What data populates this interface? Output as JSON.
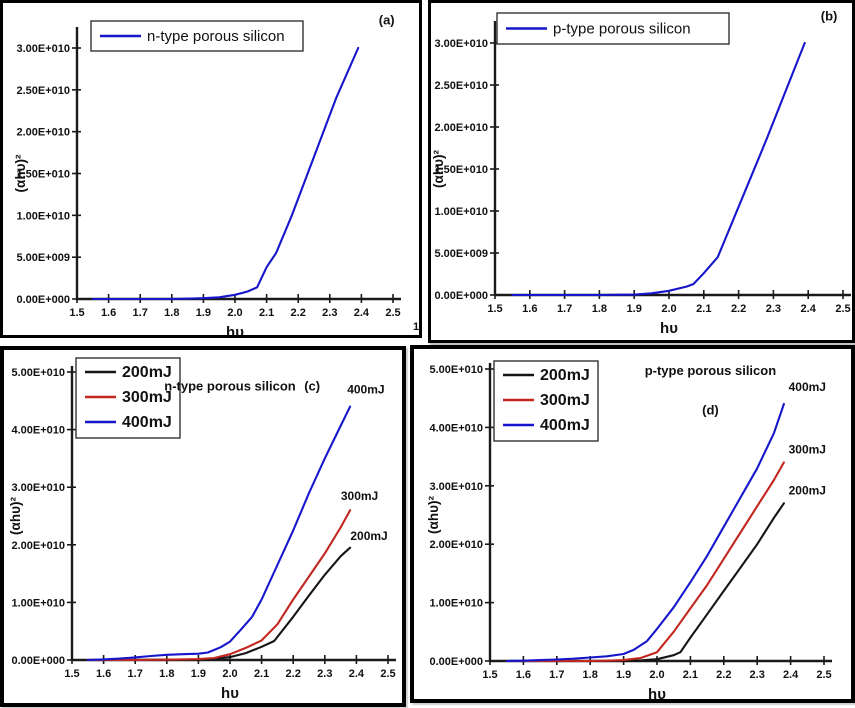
{
  "figure": {
    "stray_mark": "1"
  },
  "colors": {
    "blue": "#1616cc",
    "red": "#c2271f",
    "black": "#151515",
    "axis": "#1a1a1a"
  },
  "chart_data": [
    {
      "type": "line",
      "panel_label": "(a)",
      "xlabel": "hυ",
      "ylabel": "(αhυ)²",
      "xlim": [
        1.5,
        2.5
      ],
      "ylim": [
        0,
        30000000000.0
      ],
      "x_tick_values": [
        1.5,
        1.6,
        1.7,
        1.8,
        1.9,
        2.0,
        2.1,
        2.2,
        2.3,
        2.4,
        2.5
      ],
      "x_tick_labels": [
        "1.5",
        "1.6",
        "1.7",
        "1.8",
        "1.9",
        "2.0",
        "2.1",
        "2.2",
        "2.3",
        "2.4",
        "2.5"
      ],
      "y_tick_values": [
        0,
        5000000000.0,
        10000000000.0,
        15000000000.0,
        20000000000.0,
        25000000000.0,
        30000000000.0
      ],
      "y_tick_labels": [
        "0.00E+000",
        "5.00E+009",
        "1.00E+010",
        "1.50E+010",
        "2.00E+010",
        "2.50E+010",
        "3.00E+010"
      ],
      "legend": [
        {
          "label": "n-type porous silicon",
          "color": "#1616cc"
        }
      ],
      "series": [
        {
          "name": "n-type porous silicon",
          "color": "#1616cc",
          "x": [
            1.55,
            1.6,
            1.7,
            1.8,
            1.9,
            1.95,
            2.0,
            2.04,
            2.07,
            2.1,
            2.13,
            2.18,
            2.25,
            2.32,
            2.39
          ],
          "y": [
            0,
            0,
            0,
            0,
            100000000.0,
            200000000.0,
            500000000.0,
            900000000.0,
            1400000000.0,
            3800000000.0,
            5500000000.0,
            10000000000.0,
            17000000000.0,
            24000000000.0,
            30000000000.0
          ]
        }
      ],
      "annotations": [
        {
          "text": "(a)",
          "x": 2.48,
          "y": 32800000000.0,
          "kind": "letter"
        }
      ]
    },
    {
      "type": "line",
      "panel_label": "(b)",
      "xlabel": "hυ",
      "ylabel": "(αhυ)²",
      "xlim": [
        1.5,
        2.5
      ],
      "ylim": [
        0,
        30000000000.0
      ],
      "x_tick_values": [
        1.5,
        1.6,
        1.7,
        1.8,
        1.9,
        2.0,
        2.1,
        2.2,
        2.3,
        2.4,
        2.5
      ],
      "x_tick_labels": [
        "1.5",
        "1.6",
        "1.7",
        "1.8",
        "1.9",
        "2.0",
        "2.1",
        "2.2",
        "2.3",
        "2.4",
        "2.5"
      ],
      "y_tick_values": [
        0,
        5000000000.0,
        10000000000.0,
        15000000000.0,
        20000000000.0,
        25000000000.0,
        30000000000.0
      ],
      "y_tick_labels": [
        "0.00E+000",
        "5.00E+009",
        "1.00E+010",
        "1.50E+010",
        "2.00E+010",
        "2.50E+010",
        "3.00E+010"
      ],
      "legend": [
        {
          "label": "p-type porous silicon",
          "color": "#1616cc"
        }
      ],
      "series": [
        {
          "name": "p-type porous silicon",
          "color": "#1616cc",
          "x": [
            1.55,
            1.6,
            1.7,
            1.8,
            1.9,
            1.95,
            2.0,
            2.05,
            2.07,
            2.1,
            2.14,
            2.2,
            2.28,
            2.39
          ],
          "y": [
            0,
            0,
            0,
            0,
            50000000.0,
            200000000.0,
            500000000.0,
            1000000000.0,
            1300000000.0,
            2600000000.0,
            4500000000.0,
            10500000000.0,
            18500000000.0,
            30000000000.0
          ]
        }
      ],
      "annotations": [
        {
          "text": "(b)",
          "x": 2.46,
          "y": 32700000000.0,
          "kind": "letter"
        }
      ]
    },
    {
      "type": "line",
      "panel_label": "(c)",
      "xlabel": "hυ",
      "ylabel": "(αhυ)²",
      "xlim": [
        1.5,
        2.5
      ],
      "ylim": [
        0,
        50000000000.0
      ],
      "x_tick_values": [
        1.5,
        1.6,
        1.7,
        1.8,
        1.9,
        2.0,
        2.1,
        2.2,
        2.3,
        2.4,
        2.5
      ],
      "x_tick_labels": [
        "1.5",
        "1.6",
        "1.7",
        "1.8",
        "1.9",
        "2.0",
        "2.1",
        "2.2",
        "2.3",
        "2.4",
        "2.5"
      ],
      "y_tick_values": [
        0,
        10000000000.0,
        20000000000.0,
        30000000000.0,
        40000000000.0,
        50000000000.0
      ],
      "y_tick_labels": [
        "0.00E+000",
        "1.00E+010",
        "2.00E+010",
        "3.00E+010",
        "4.00E+010",
        "5.00E+010"
      ],
      "legend": [
        {
          "label": "200mJ",
          "color": "#151515"
        },
        {
          "label": "300mJ",
          "color": "#c2271f"
        },
        {
          "label": "400mJ",
          "color": "#1616cc"
        }
      ],
      "series": [
        {
          "name": "200mJ",
          "color": "#151515",
          "x": [
            1.55,
            1.7,
            1.8,
            1.9,
            1.95,
            2.0,
            2.05,
            2.1,
            2.14,
            2.2,
            2.25,
            2.3,
            2.35,
            2.38
          ],
          "y": [
            0,
            0,
            50000000.0,
            100000000.0,
            200000000.0,
            500000000.0,
            1200000000.0,
            2300000000.0,
            3300000000.0,
            7500000000.0,
            11200000000.0,
            14800000000.0,
            18000000000.0,
            19500000000.0
          ]
        },
        {
          "name": "300mJ",
          "color": "#c2271f",
          "x": [
            1.55,
            1.7,
            1.8,
            1.9,
            1.95,
            2.0,
            2.05,
            2.1,
            2.15,
            2.2,
            2.25,
            2.3,
            2.35,
            2.38
          ],
          "y": [
            0,
            0,
            50000000.0,
            150000000.0,
            350000000.0,
            1000000000.0,
            2100000000.0,
            3400000000.0,
            6200000000.0,
            10500000000.0,
            14500000000.0,
            18500000000.0,
            23000000000.0,
            26000000000.0
          ]
        },
        {
          "name": "400mJ",
          "color": "#1616cc",
          "x": [
            1.55,
            1.6,
            1.65,
            1.7,
            1.75,
            1.8,
            1.85,
            1.9,
            1.93,
            1.97,
            2.0,
            2.04,
            2.07,
            2.1,
            2.15,
            2.2,
            2.25,
            2.3,
            2.34,
            2.38
          ],
          "y": [
            0,
            100000000.0,
            250000000.0,
            450000000.0,
            700000000.0,
            900000000.0,
            1000000000.0,
            1100000000.0,
            1300000000.0,
            2200000000.0,
            3200000000.0,
            5600000000.0,
            7500000000.0,
            10500000000.0,
            16500000000.0,
            22500000000.0,
            29000000000.0,
            35000000000.0,
            39500000000.0,
            44000000000.0
          ]
        }
      ],
      "annotations": [
        {
          "text": "n-type porous silicon",
          "x": 2.0,
          "y": 46800000000.0,
          "kind": "title"
        },
        {
          "text": "(c)",
          "x": 2.26,
          "y": 46800000000.0,
          "kind": "letter"
        },
        {
          "text": "400mJ",
          "x": 2.43,
          "y": 46300000000.0,
          "kind": "note"
        },
        {
          "text": "300mJ",
          "x": 2.41,
          "y": 27800000000.0,
          "kind": "note"
        },
        {
          "text": "200mJ",
          "x": 2.44,
          "y": 20800000000.0,
          "kind": "note"
        }
      ]
    },
    {
      "type": "line",
      "panel_label": "(d)",
      "xlabel": "hυ",
      "ylabel": "(αhυ)²",
      "xlim": [
        1.5,
        2.5
      ],
      "ylim": [
        0,
        50000000000.0
      ],
      "x_tick_values": [
        1.5,
        1.6,
        1.7,
        1.8,
        1.9,
        2.0,
        2.1,
        2.2,
        2.3,
        2.4,
        2.5
      ],
      "x_tick_labels": [
        "1.5",
        "1.6",
        "1.7",
        "1.8",
        "1.9",
        "2.0",
        "2.1",
        "2.2",
        "2.3",
        "2.4",
        "2.5"
      ],
      "y_tick_values": [
        0,
        10000000000.0,
        20000000000.0,
        30000000000.0,
        40000000000.0,
        50000000000.0
      ],
      "y_tick_labels": [
        "0.00E+000",
        "1.00E+010",
        "2.00E+010",
        "3.00E+010",
        "4.00E+010",
        "5.00E+010"
      ],
      "legend": [
        {
          "label": "200mJ",
          "color": "#151515"
        },
        {
          "label": "300mJ",
          "color": "#c2271f"
        },
        {
          "label": "400mJ",
          "color": "#1616cc"
        }
      ],
      "series": [
        {
          "name": "200mJ",
          "color": "#151515",
          "x": [
            1.55,
            1.9,
            1.95,
            2.0,
            2.05,
            2.07,
            2.1,
            2.15,
            2.2,
            2.25,
            2.3,
            2.35,
            2.38
          ],
          "y": [
            0,
            0,
            100000000.0,
            300000000.0,
            1000000000.0,
            1500000000.0,
            4000000000.0,
            8000000000.0,
            12000000000.0,
            16000000000.0,
            20000000000.0,
            24500000000.0,
            27000000000.0
          ]
        },
        {
          "name": "300mJ",
          "color": "#c2271f",
          "x": [
            1.55,
            1.8,
            1.85,
            1.9,
            1.95,
            2.0,
            2.05,
            2.1,
            2.15,
            2.2,
            2.25,
            2.3,
            2.35,
            2.38
          ],
          "y": [
            0,
            0,
            50000000.0,
            150000000.0,
            500000000.0,
            1500000000.0,
            5000000000.0,
            9000000000.0,
            13000000000.0,
            17500000000.0,
            22000000000.0,
            26500000000.0,
            31000000000.0,
            34000000000.0
          ]
        },
        {
          "name": "400mJ",
          "color": "#1616cc",
          "x": [
            1.55,
            1.6,
            1.65,
            1.7,
            1.75,
            1.8,
            1.85,
            1.9,
            1.93,
            1.97,
            2.0,
            2.05,
            2.1,
            2.15,
            2.2,
            2.25,
            2.3,
            2.35,
            2.38
          ],
          "y": [
            0,
            50000000.0,
            150000000.0,
            250000000.0,
            400000000.0,
            600000000.0,
            800000000.0,
            1200000000.0,
            1900000000.0,
            3400000000.0,
            5500000000.0,
            9200000000.0,
            13500000000.0,
            18000000000.0,
            23000000000.0,
            28000000000.0,
            33000000000.0,
            39000000000.0,
            44000000000.0
          ]
        }
      ],
      "annotations": [
        {
          "text": "p-type porous silicon",
          "x": 2.16,
          "y": 49000000000.0,
          "kind": "title"
        },
        {
          "text": "(d)",
          "x": 2.16,
          "y": 42200000000.0,
          "kind": "letter"
        },
        {
          "text": "400mJ",
          "x": 2.45,
          "y": 46200000000.0,
          "kind": "note"
        },
        {
          "text": "300mJ",
          "x": 2.45,
          "y": 35500000000.0,
          "kind": "note"
        },
        {
          "text": "200mJ",
          "x": 2.45,
          "y": 28500000000.0,
          "kind": "note"
        }
      ]
    }
  ]
}
